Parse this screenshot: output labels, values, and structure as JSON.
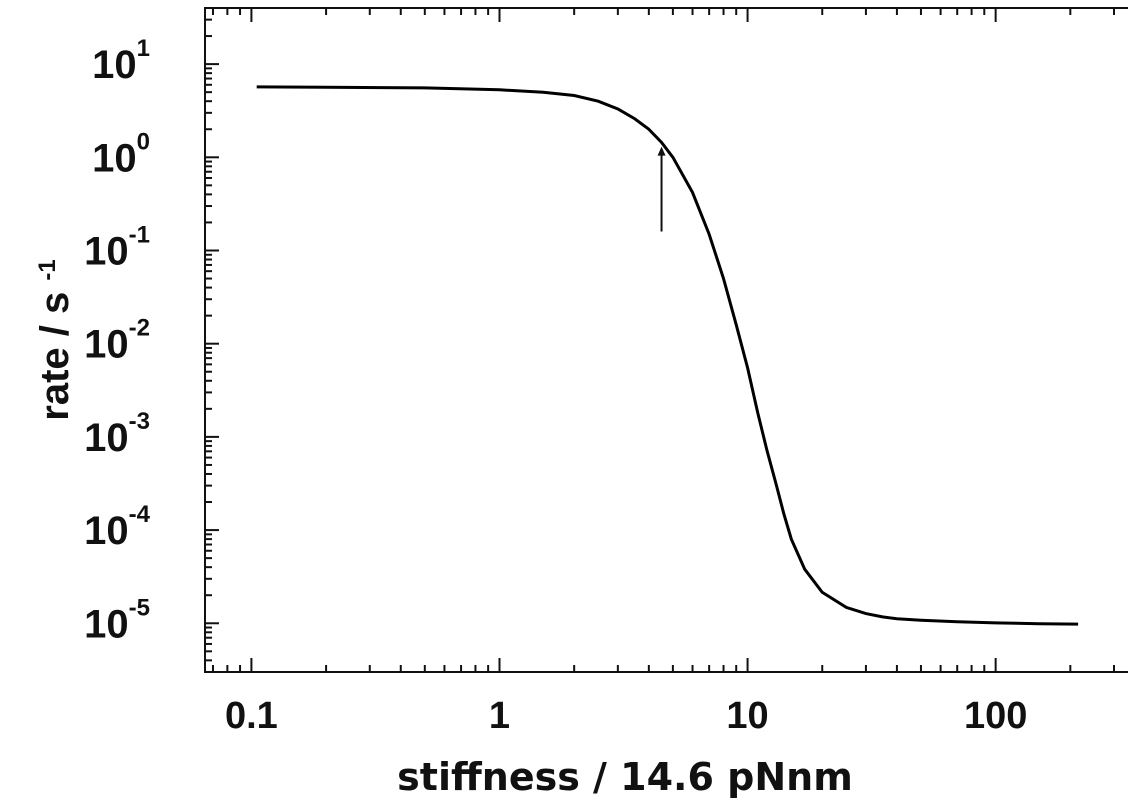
{
  "chart_data": {
    "type": "line",
    "title": "",
    "xlabel": "stiffness / 14.6 pNnm",
    "ylabel": "rate / s",
    "ylabel_superscript": "-1",
    "x_scale": "log",
    "y_scale": "log",
    "xlim": [
      0.065,
      400
    ],
    "ylim": [
      3e-06,
      40
    ],
    "x_ticks": [
      {
        "value": 0.1,
        "label": "0.1"
      },
      {
        "value": 1,
        "label": "1"
      },
      {
        "value": 10,
        "label": "10"
      },
      {
        "value": 100,
        "label": "100"
      }
    ],
    "y_ticks": [
      {
        "value": 10,
        "base": "10",
        "exp": "1"
      },
      {
        "value": 1,
        "base": "10",
        "exp": "0"
      },
      {
        "value": 0.1,
        "base": "10",
        "exp": "-1"
      },
      {
        "value": 0.01,
        "base": "10",
        "exp": "-2"
      },
      {
        "value": 0.001,
        "base": "10",
        "exp": "-3"
      },
      {
        "value": 0.0001,
        "base": "10",
        "exp": "-4"
      },
      {
        "value": 1e-05,
        "base": "10",
        "exp": "-5"
      }
    ],
    "grid": false,
    "legend": "none",
    "series": [
      {
        "x": [
          0.105,
          0.2,
          0.5,
          1,
          1.5,
          2,
          2.5,
          3,
          3.5,
          4,
          4.5,
          5,
          6,
          7,
          8,
          9,
          10,
          11,
          12,
          13,
          14,
          15,
          17,
          20,
          25,
          30,
          35,
          40,
          50,
          70,
          100,
          150,
          215
        ],
        "y": [
          5.7,
          5.65,
          5.55,
          5.3,
          5.0,
          4.6,
          4.0,
          3.3,
          2.6,
          2.0,
          1.45,
          1.0,
          0.42,
          0.15,
          0.05,
          0.016,
          0.0055,
          0.0018,
          0.0007,
          0.00032,
          0.00015,
          8e-05,
          3.8e-05,
          2.15e-05,
          1.48e-05,
          1.27e-05,
          1.17e-05,
          1.12e-05,
          1.08e-05,
          1.04e-05,
          1.01e-05,
          9.9e-06,
          9.8e-06
        ],
        "color": "#000000"
      }
    ],
    "annotations": [
      {
        "type": "arrow",
        "x": 4.5,
        "y_from": 0.16,
        "y_to": 1.3
      }
    ]
  }
}
